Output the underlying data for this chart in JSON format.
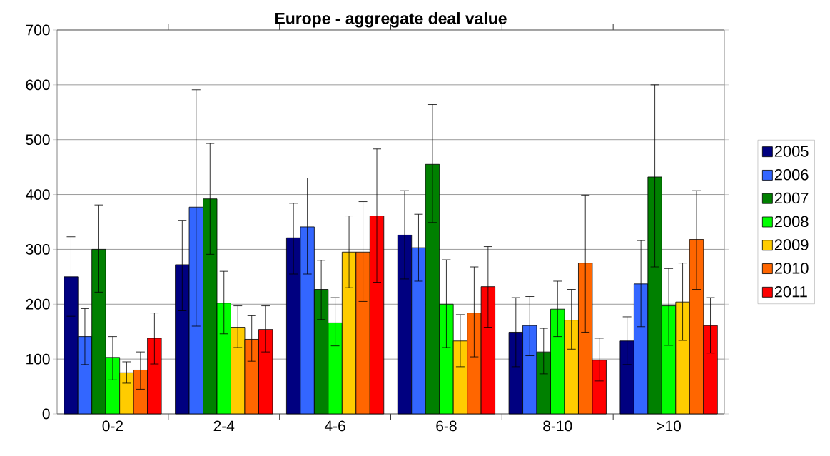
{
  "chart_data": {
    "type": "bar",
    "title": "Europe - aggregate deal value",
    "categories": [
      "0-2",
      "2-4",
      "4-6",
      "6-8",
      "8-10",
      ">10"
    ],
    "ylim": [
      0,
      700
    ],
    "yticks": [
      0,
      100,
      200,
      300,
      400,
      500,
      600,
      700
    ],
    "grid": "y",
    "legend": "right",
    "series": [
      {
        "name": "2005",
        "color": "#000080",
        "values": [
          250,
          272,
          321,
          326,
          149,
          133
        ],
        "errors": [
          [
            178,
            323
          ],
          [
            188,
            353
          ],
          [
            255,
            384
          ],
          [
            246,
            407
          ],
          [
            86,
            212
          ],
          [
            90,
            177
          ]
        ]
      },
      {
        "name": "2006",
        "color": "#3366ff",
        "values": [
          141,
          377,
          341,
          303,
          161,
          237
        ],
        "errors": [
          [
            90,
            192
          ],
          [
            160,
            591
          ],
          [
            255,
            430
          ],
          [
            242,
            364
          ],
          [
            106,
            214
          ],
          [
            159,
            316
          ]
        ]
      },
      {
        "name": "2007",
        "color": "#008000",
        "values": [
          300,
          392,
          227,
          455,
          113,
          432
        ],
        "errors": [
          [
            222,
            381
          ],
          [
            291,
            493
          ],
          [
            172,
            280
          ],
          [
            349,
            564
          ],
          [
            73,
            156
          ],
          [
            268,
            600
          ]
        ]
      },
      {
        "name": "2008",
        "color": "#00ff00",
        "values": [
          103,
          202,
          166,
          200,
          191,
          197
        ],
        "errors": [
          [
            62,
            141
          ],
          [
            146,
            260
          ],
          [
            124,
            212
          ],
          [
            121,
            281
          ],
          [
            141,
            242
          ],
          [
            125,
            265
          ]
        ]
      },
      {
        "name": "2009",
        "color": "#ffcc00",
        "values": [
          75,
          158,
          295,
          133,
          171,
          204
        ],
        "errors": [
          [
            56,
            95
          ],
          [
            121,
            197
          ],
          [
            230,
            361
          ],
          [
            86,
            181
          ],
          [
            118,
            227
          ],
          [
            134,
            275
          ]
        ]
      },
      {
        "name": "2010",
        "color": "#ff6600",
        "values": [
          80,
          136,
          295,
          184,
          275,
          318
        ],
        "errors": [
          [
            45,
            113
          ],
          [
            96,
            179
          ],
          [
            205,
            387
          ],
          [
            104,
            268
          ],
          [
            149,
            399
          ],
          [
            227,
            407
          ]
        ]
      },
      {
        "name": "2011",
        "color": "#ff0000",
        "values": [
          138,
          154,
          361,
          232,
          98,
          161
        ],
        "errors": [
          [
            91,
            184
          ],
          [
            113,
            197
          ],
          [
            240,
            483
          ],
          [
            158,
            305
          ],
          [
            60,
            138
          ],
          [
            111,
            212
          ]
        ]
      }
    ]
  }
}
